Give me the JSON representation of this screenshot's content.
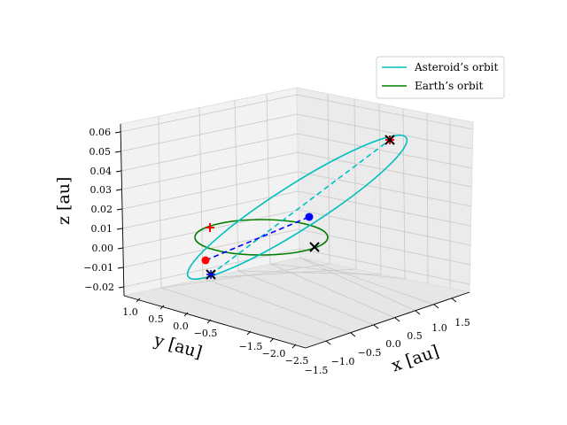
{
  "chart_data": {
    "type": "line3d",
    "xlabel": "x [au]",
    "ylabel": "y [au]",
    "zlabel": "z [au]",
    "x_ticks": [
      "−1.5",
      "−1.0",
      "−0.5",
      "0.0",
      "0.5",
      "1.0",
      "1.5"
    ],
    "y_ticks": [
      "1.0",
      "0.5",
      "0.0",
      "−0.5",
      "−1.5",
      "−2.0",
      "−2.5"
    ],
    "z_ticks": [
      "0.06",
      "0.05",
      "0.04",
      "0.03",
      "0.02",
      "0.01",
      "0.00",
      "−0.01",
      "−0.02"
    ],
    "grid": true,
    "legend_position": "top-right",
    "series": [
      {
        "name": "Asteroid’s orbit",
        "color": "#00bfbf",
        "style": "solid",
        "shape": "tilted ellipse"
      },
      {
        "name": "Earth’s orbit",
        "color": "#008000",
        "style": "solid",
        "shape": "circle, r = 1 au, z = 0"
      }
    ],
    "extras": [
      {
        "kind": "node line",
        "color": "#00bfbf",
        "style": "dashed"
      },
      {
        "kind": "Earth–asteroid line",
        "color": "#0000ff",
        "style": "dashed"
      },
      {
        "kind": "marker",
        "shape": "x",
        "color": "#000000",
        "count": 3
      },
      {
        "kind": "marker",
        "shape": "+",
        "color": "#ff0000",
        "count": 2
      },
      {
        "kind": "marker",
        "shape": "dot",
        "color": "#ff0000",
        "count": 1
      },
      {
        "kind": "marker",
        "shape": "dot",
        "color": "#0000ff",
        "count": 1
      }
    ]
  }
}
